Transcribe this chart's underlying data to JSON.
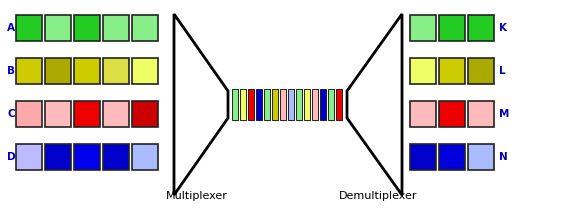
{
  "background_color": "#ffffff",
  "left_rows": {
    "A": [
      "#22cc22",
      "#88ee88",
      "#22cc22",
      "#88ee88",
      "#88ee88"
    ],
    "B": [
      "#cccc00",
      "#aaaa00",
      "#cccc00",
      "#dddd44",
      "#eeff66"
    ],
    "C": [
      "#ffaaaa",
      "#ffbbbb",
      "#ee0000",
      "#ffbbbb",
      "#cc0000"
    ],
    "D": [
      "#bbbbff",
      "#0000cc",
      "#0000ee",
      "#0000cc",
      "#aabbff"
    ]
  },
  "right_rows": {
    "K": [
      "#88ee88",
      "#22cc22",
      "#22cc22"
    ],
    "L": [
      "#eeff66",
      "#cccc00",
      "#aaaa00"
    ],
    "M": [
      "#ffbbbb",
      "#ee0000",
      "#ffbbbb"
    ],
    "N": [
      "#0000cc",
      "#0000dd",
      "#aabbff"
    ]
  },
  "channel_colors": [
    "#88ee88",
    "#eeff66",
    "#ee0000",
    "#0000cc",
    "#88ee88",
    "#cccc00",
    "#ffbbbb",
    "#aabbff",
    "#88ee88",
    "#eeff66",
    "#ffbbbb",
    "#0000cc",
    "#88ee88",
    "#ee0000",
    "#aabbff",
    "#cccc00",
    "#ee0000",
    "#aabbff",
    "#0000cc",
    "#88ee88"
  ],
  "multiplexer_label": "Multiplexer",
  "demultiplexer_label": "Demultiplexer",
  "row_labels_left": [
    "A",
    "B",
    "C",
    "D"
  ],
  "row_labels_right": [
    "K",
    "L",
    "M",
    "N"
  ],
  "label_color": "#0000bb",
  "label_fontsize": 7.5,
  "mux_label_fontsize": 8
}
